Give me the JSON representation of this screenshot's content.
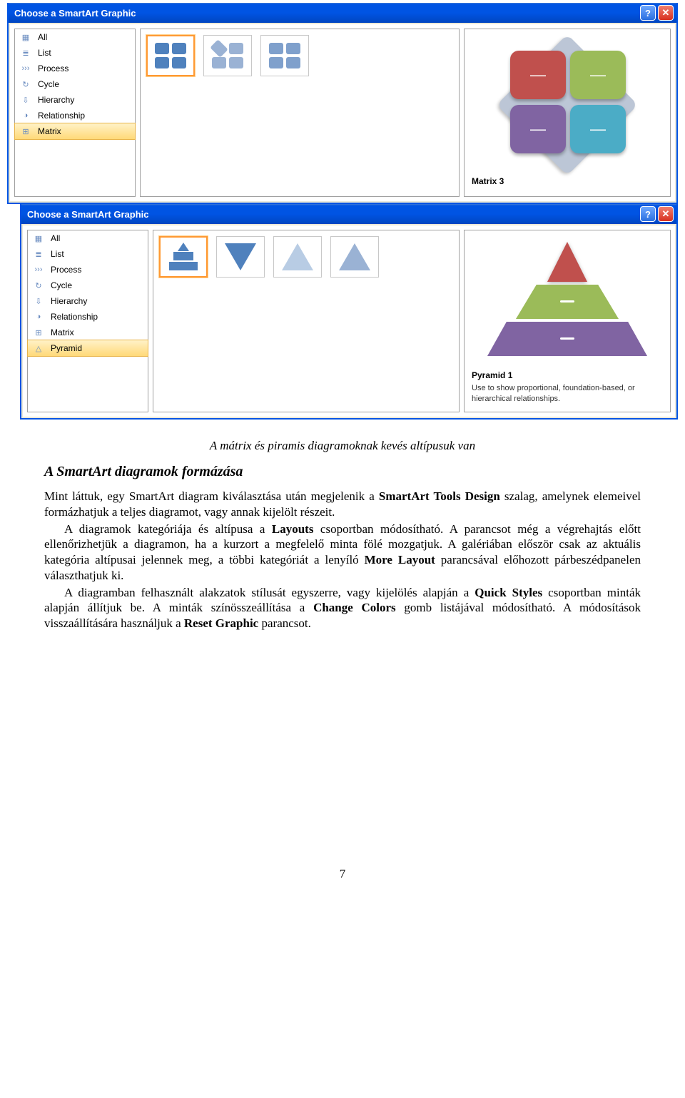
{
  "dialog1": {
    "title": "Choose a SmartArt Graphic",
    "categories": [
      {
        "label": "All",
        "icon": "▦"
      },
      {
        "label": "List",
        "icon": "≣"
      },
      {
        "label": "Process",
        "icon": "›››"
      },
      {
        "label": "Cycle",
        "icon": "↻"
      },
      {
        "label": "Hierarchy",
        "icon": "⇩"
      },
      {
        "label": "Relationship",
        "icon": "◑"
      },
      {
        "label": "Matrix",
        "icon": "⊞",
        "selected": true
      }
    ],
    "preview_title": "Matrix 3",
    "matrix_colors": {
      "m1": "#c0504d",
      "m2": "#9bbb59",
      "m3": "#8064a2",
      "m4": "#4bacc6",
      "bg": "#bcc6d6"
    }
  },
  "dialog2": {
    "title": "Choose a SmartArt Graphic",
    "categories": [
      {
        "label": "All",
        "icon": "▦"
      },
      {
        "label": "List",
        "icon": "≣"
      },
      {
        "label": "Process",
        "icon": "›››"
      },
      {
        "label": "Cycle",
        "icon": "↻"
      },
      {
        "label": "Hierarchy",
        "icon": "⇩"
      },
      {
        "label": "Relationship",
        "icon": "◑"
      },
      {
        "label": "Matrix",
        "icon": "⊞"
      },
      {
        "label": "Pyramid",
        "icon": "△",
        "selected": true
      }
    ],
    "preview_title": "Pyramid 1",
    "preview_desc": "Use to show proportional, foundation-based, or hierarchical relationships.",
    "pyramid_colors": {
      "top": "#c0504d",
      "mid": "#9bbb59",
      "bot": "#8064a2"
    }
  },
  "text": {
    "caption": "A mátrix és piramis diagramoknak kevés altípusuk van",
    "heading": "A SmartArt diagramok formázása",
    "p1a": "Mint láttuk, egy SmartArt diagram kiválasztása után megjelenik a ",
    "p1b": "SmartArt Tools Design",
    "p1c": " szalag, amelynek elemeivel formázhatjuk a teljes diagramot, vagy annak kijelölt részeit.",
    "p2a": "A diagramok kategóriája és altípusa a ",
    "p2b": "Layouts",
    "p2c": " csoportban módosítható. A parancsot még a végrehajtás előtt ellenőrizhetjük a diagramon, ha a kurzort a megfelelő minta fölé mozgatjuk. A galériában először csak az aktuális kategória altípusai jelennek meg, a többi kategóriát a lenyíló ",
    "p2d": "More Layout",
    "p2e": " parancsával előhozott párbeszédpanelen választhatjuk ki.",
    "p3a": "A diagramban felhasznált alakzatok stílusát egyszerre, vagy kijelölés alapján a ",
    "p3b": "Quick Styles",
    "p3c": " csoportban minták alapján állítjuk be. A minták színösszeállítása a ",
    "p3d": "Change Colors",
    "p3e": " gomb listájával módosítható. A módosítások visszaállítására használjuk a ",
    "p3f": "Reset Graphic",
    "p3g": " parancsot.",
    "page_num": "7"
  }
}
